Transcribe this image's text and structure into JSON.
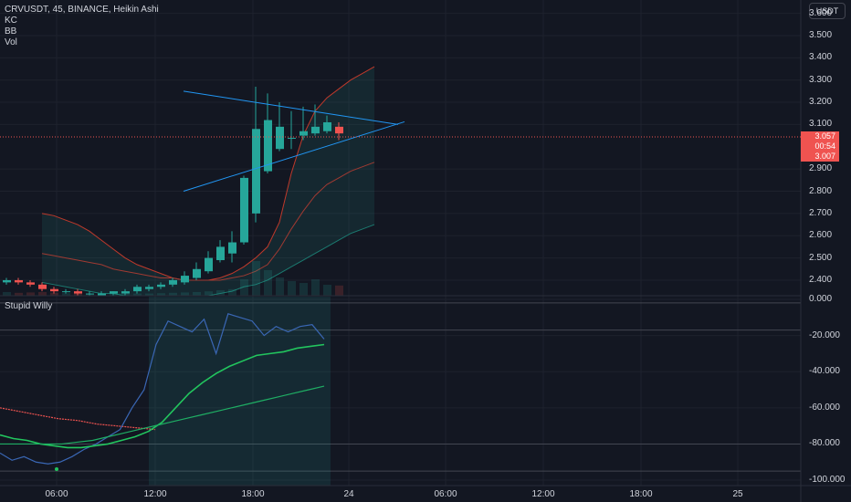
{
  "header": {
    "symbol_line": "CRVUSDT, 45, BINANCE, Heikin Ashi",
    "indicators": [
      "KC",
      "BB",
      "Vol"
    ]
  },
  "price_axis": {
    "currency": "USDT",
    "ticks": [
      "3.600",
      "3.500",
      "3.400",
      "3.300",
      "3.200",
      "3.100",
      "2.900",
      "2.800",
      "2.700",
      "2.600",
      "2.500",
      "2.400"
    ],
    "tag": {
      "price": "3.057",
      "countdown": "00:54",
      "low": "3.007"
    }
  },
  "osc_pane": {
    "name": "Stupid Willy",
    "ticks": [
      "0.000",
      "-20.000",
      "-40.000",
      "-60.000",
      "-80.000",
      "-100.000"
    ]
  },
  "time_axis": {
    "ticks": [
      "06:00",
      "12:00",
      "18:00",
      "24",
      "06:00",
      "12:00",
      "18:00",
      "25"
    ]
  },
  "colors": {
    "background": "#131722",
    "grid": "#1e222d",
    "up": "#26a69a",
    "down": "#ef5350",
    "kc_line": "#c0392b",
    "bb_fill": "#26a69a",
    "triangle": "#2196f3",
    "osc_fast": "#2962ff",
    "osc_slow": "#22c55e"
  },
  "chart_data": [
    {
      "type": "candlestick",
      "title": "CRVUSDT, 45, BINANCE, Heikin Ashi",
      "ylim": [
        2.33,
        3.66
      ],
      "x_ticks": [
        "06:00",
        "12:00",
        "18:00",
        "24",
        "06:00",
        "12:00",
        "18:00",
        "25"
      ],
      "y_ticks": [
        3.6,
        3.5,
        3.4,
        3.3,
        3.2,
        3.1,
        2.9,
        2.8,
        2.7,
        2.6,
        2.5,
        2.4
      ],
      "candles": [
        {
          "o": 2.39,
          "c": 2.4,
          "h": 2.41,
          "l": 2.38
        },
        {
          "o": 2.4,
          "c": 2.39,
          "h": 2.41,
          "l": 2.38
        },
        {
          "o": 2.39,
          "c": 2.38,
          "h": 2.4,
          "l": 2.37
        },
        {
          "o": 2.38,
          "c": 2.36,
          "h": 2.39,
          "l": 2.35
        },
        {
          "o": 2.36,
          "c": 2.35,
          "h": 2.37,
          "l": 2.34
        },
        {
          "o": 2.35,
          "c": 2.35,
          "h": 2.36,
          "l": 2.34
        },
        {
          "o": 2.35,
          "c": 2.34,
          "h": 2.36,
          "l": 2.33
        },
        {
          "o": 2.34,
          "c": 2.34,
          "h": 2.35,
          "l": 2.33
        },
        {
          "o": 2.33,
          "c": 2.34,
          "h": 2.35,
          "l": 2.33
        },
        {
          "o": 2.34,
          "c": 2.35,
          "h": 2.35,
          "l": 2.33
        },
        {
          "o": 2.34,
          "c": 2.35,
          "h": 2.36,
          "l": 2.33
        },
        {
          "o": 2.35,
          "c": 2.37,
          "h": 2.38,
          "l": 2.34
        },
        {
          "o": 2.36,
          "c": 2.37,
          "h": 2.38,
          "l": 2.35
        },
        {
          "o": 2.37,
          "c": 2.38,
          "h": 2.39,
          "l": 2.36
        },
        {
          "o": 2.38,
          "c": 2.4,
          "h": 2.41,
          "l": 2.37
        },
        {
          "o": 2.39,
          "c": 2.42,
          "h": 2.44,
          "l": 2.38
        },
        {
          "o": 2.41,
          "c": 2.45,
          "h": 2.48,
          "l": 2.4
        },
        {
          "o": 2.44,
          "c": 2.5,
          "h": 2.53,
          "l": 2.43
        },
        {
          "o": 2.49,
          "c": 2.55,
          "h": 2.58,
          "l": 2.48
        },
        {
          "o": 2.52,
          "c": 2.57,
          "h": 2.62,
          "l": 2.48
        },
        {
          "o": 2.57,
          "c": 2.86,
          "h": 2.87,
          "l": 2.56
        },
        {
          "o": 2.7,
          "c": 3.08,
          "h": 3.27,
          "l": 2.66
        },
        {
          "o": 2.89,
          "c": 3.12,
          "h": 3.24,
          "l": 2.88
        },
        {
          "o": 2.99,
          "c": 3.09,
          "h": 3.2,
          "l": 2.98
        },
        {
          "o": 3.04,
          "c": 3.04,
          "h": 3.16,
          "l": 2.99
        },
        {
          "o": 3.05,
          "c": 3.07,
          "h": 3.18,
          "l": 3.03
        },
        {
          "o": 3.06,
          "c": 3.09,
          "h": 3.19,
          "l": 3.05
        },
        {
          "o": 3.07,
          "c": 3.11,
          "h": 3.14,
          "l": 3.06
        },
        {
          "o": 3.09,
          "c": 3.06,
          "h": 3.11,
          "l": 3.03
        }
      ],
      "bb_upper": [
        2.7,
        2.69,
        2.67,
        2.65,
        2.62,
        2.58,
        2.54,
        2.5,
        2.47,
        2.45,
        2.43,
        2.41,
        2.4,
        2.4,
        2.4,
        2.41,
        2.43,
        2.46,
        2.5,
        2.55,
        2.66,
        2.88,
        3.05,
        3.16,
        3.22,
        3.26,
        3.3,
        3.33,
        3.36
      ],
      "bb_lower": [
        2.39,
        2.38,
        2.37,
        2.36,
        2.35,
        2.34,
        2.34,
        2.33,
        2.33,
        2.33,
        2.33,
        2.33,
        2.33,
        2.33,
        2.33,
        2.34,
        2.35,
        2.37,
        2.38,
        2.4,
        2.43,
        2.46,
        2.49,
        2.52,
        2.55,
        2.58,
        2.61,
        2.63,
        2.65
      ],
      "kc_mid": [
        2.52,
        2.51,
        2.5,
        2.49,
        2.48,
        2.47,
        2.45,
        2.44,
        2.43,
        2.42,
        2.41,
        2.41,
        2.4,
        2.4,
        2.4,
        2.4,
        2.41,
        2.42,
        2.44,
        2.47,
        2.54,
        2.63,
        2.71,
        2.78,
        2.83,
        2.86,
        2.89,
        2.91,
        2.93
      ],
      "triangle": {
        "upper": {
          "from": {
            "i": 12,
            "p": 3.25
          },
          "to": {
            "i": 33,
            "p": 3.1
          }
        },
        "lower": {
          "from": {
            "i": 12,
            "p": 2.8
          },
          "to": {
            "i": 33,
            "p": 3.1
          }
        }
      },
      "volume": [
        0.1,
        0.08,
        0.09,
        0.1,
        0.08,
        0.07,
        0.06,
        0.06,
        0.05,
        0.06,
        0.05,
        0.06,
        0.06,
        0.07,
        0.08,
        0.09,
        0.1,
        0.12,
        0.15,
        0.18,
        0.45,
        0.95,
        0.7,
        0.5,
        0.4,
        0.35,
        0.45,
        0.3,
        0.28
      ]
    },
    {
      "type": "line",
      "title": "Stupid Willy",
      "ylim": [
        -103,
        2
      ],
      "y_ticks": [
        0,
        -20,
        -40,
        -60,
        -80,
        -100
      ],
      "series": [
        {
          "values": [
            -85,
            -89,
            -87,
            -90,
            -91,
            -90,
            -87,
            -83,
            -80,
            -76,
            -72,
            -60,
            -50,
            -25,
            -12,
            -15,
            -18,
            -11,
            -30,
            -8,
            -10,
            -12,
            -20,
            -15,
            -18,
            -15,
            -14,
            -22
          ]
        },
        {
          "values": [
            -75,
            -77,
            -78,
            -80,
            -81,
            -82,
            -82,
            -81,
            -80,
            -78,
            -76,
            -73,
            -68,
            -60,
            -52,
            -46,
            -41,
            -37,
            -34,
            -31,
            -30,
            -29,
            -27,
            -26,
            -25
          ]
        },
        {
          "values": [
            -80,
            -80,
            -80,
            -80,
            -80,
            -79,
            -78,
            -76,
            -74,
            -72,
            -70,
            -68,
            -66,
            -64,
            -62,
            -60,
            -58,
            -56,
            -54,
            -52,
            -50,
            -48
          ]
        },
        {
          "values": [
            -60,
            -62,
            -64,
            -66,
            -67,
            -69,
            -70,
            -71,
            -72
          ]
        }
      ]
    }
  ]
}
